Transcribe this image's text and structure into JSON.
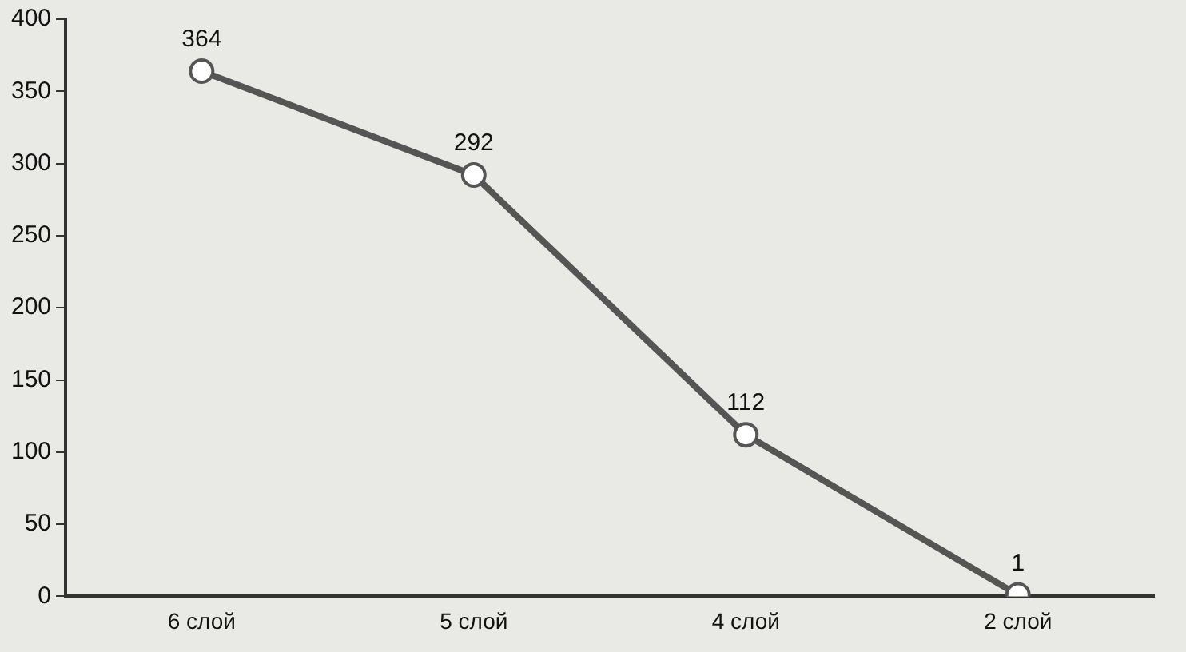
{
  "chart_data": {
    "type": "line",
    "categories": [
      "6 слой",
      "5 слой",
      "4 слой",
      "2 слой"
    ],
    "series": [
      {
        "color": "#555555",
        "values": [
          364,
          292,
          112,
          1
        ]
      }
    ],
    "ylim": [
      0,
      400
    ],
    "yticks": [
      0,
      50,
      100,
      150,
      200,
      250,
      300,
      350,
      400
    ],
    "grid": false,
    "legend": false,
    "marker": "circle",
    "line_style": "solid",
    "data_labels": true
  }
}
